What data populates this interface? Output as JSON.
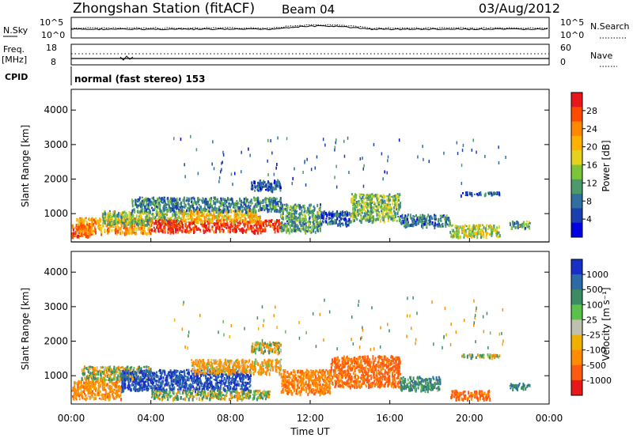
{
  "header": {
    "station": "Zhongshan Station (fitACF)",
    "beam": "Beam 04",
    "date": "03/Aug/2012"
  },
  "noise_panel": {
    "left_label": "N.Sky",
    "right_label": "N.Search",
    "y_ticks": [
      "10^5",
      "10^0"
    ]
  },
  "freq_panel": {
    "left_label_top": "Freq.",
    "left_label_bottom": "[MHz]",
    "right_label": "Nave",
    "left_ticks": [
      "18",
      "8"
    ],
    "right_ticks": [
      "60",
      "0"
    ]
  },
  "cpid": {
    "label": "CPID",
    "mode": "normal (fast stereo) 153"
  },
  "colorbars": {
    "power": {
      "label": "Power [dB]",
      "ticks": [
        "28",
        "24",
        "20",
        "16",
        "12",
        "8",
        "4"
      ],
      "colors": [
        "#e8161c",
        "#ff4a00",
        "#ff8800",
        "#ffb000",
        "#e6d21c",
        "#7cc43a",
        "#4c9a6a",
        "#3070a0",
        "#1a3fb0",
        "#0000e0"
      ]
    },
    "velocity": {
      "label": "Velocity [m s⁻¹]",
      "ticks": [
        "1000",
        "500",
        "100",
        "25",
        "-25",
        "-100",
        "-500",
        "-1000"
      ],
      "colors": [
        "#1830c8",
        "#2d6aa8",
        "#3b8c62",
        "#5ac24a",
        "#c0c0b0",
        "#f0b000",
        "#ff8c00",
        "#ff5a10",
        "#e81818"
      ]
    }
  },
  "chart_data": [
    {
      "type": "heatmap",
      "title": "",
      "xlabel": "Time UT",
      "ylabel": "Slant Range [km]",
      "x_ticks": [
        "00:00",
        "04:00",
        "08:00",
        "12:00",
        "16:00",
        "20:00",
        "00:00"
      ],
      "xlim": [
        0,
        24
      ],
      "y_ticks": [
        1000,
        2000,
        3000,
        4000
      ],
      "ylim": [
        180,
        4600
      ],
      "blobs": [
        {
          "t0": 0.0,
          "t1": 1.0,
          "r0": 350,
          "r1": 700,
          "v": 26
        },
        {
          "t0": 0.2,
          "t1": 4.0,
          "r0": 450,
          "r1": 900,
          "v": 22
        },
        {
          "t0": 1.5,
          "t1": 5.5,
          "r0": 700,
          "r1": 1100,
          "v": 14
        },
        {
          "t0": 4.0,
          "t1": 10.5,
          "r0": 500,
          "r1": 850,
          "v": 28
        },
        {
          "t0": 5.5,
          "t1": 9.5,
          "r0": 800,
          "r1": 1150,
          "v": 20
        },
        {
          "t0": 3.0,
          "t1": 10.5,
          "r0": 1100,
          "r1": 1500,
          "v": 10
        },
        {
          "t0": 9.0,
          "t1": 10.5,
          "r0": 1700,
          "r1": 2000,
          "v": 8
        },
        {
          "t0": 10.5,
          "t1": 12.5,
          "r0": 500,
          "r1": 1300,
          "v": 12
        },
        {
          "t0": 12.5,
          "t1": 14.0,
          "r0": 700,
          "r1": 1100,
          "v": 8
        },
        {
          "t0": 14.0,
          "t1": 16.5,
          "r0": 800,
          "r1": 1600,
          "v": 14
        },
        {
          "t0": 16.5,
          "t1": 19.0,
          "r0": 650,
          "r1": 1000,
          "v": 9
        },
        {
          "t0": 19.0,
          "t1": 21.5,
          "r0": 350,
          "r1": 700,
          "v": 16
        },
        {
          "t0": 19.5,
          "t1": 21.5,
          "r0": 1550,
          "r1": 1650,
          "v": 8
        },
        {
          "t0": 22.0,
          "t1": 23.0,
          "r0": 600,
          "r1": 800,
          "v": 12
        }
      ]
    },
    {
      "type": "heatmap",
      "title": "",
      "xlabel": "Time UT",
      "ylabel": "Slant Range [km]",
      "x_ticks": [
        "00:00",
        "04:00",
        "08:00",
        "12:00",
        "16:00",
        "20:00",
        "00:00"
      ],
      "xlim": [
        0,
        24
      ],
      "y_ticks": [
        1000,
        2000,
        3000,
        4000
      ],
      "ylim": [
        180,
        4600
      ],
      "blobs": [
        {
          "t0": 0.0,
          "t1": 2.5,
          "r0": 350,
          "r1": 900,
          "v": -300
        },
        {
          "t0": 0.5,
          "t1": 4.0,
          "r0": 900,
          "r1": 1300,
          "v": 60
        },
        {
          "t0": 2.5,
          "t1": 9.0,
          "r0": 600,
          "r1": 1200,
          "v": 1000
        },
        {
          "t0": 4.0,
          "t1": 10.0,
          "r0": 350,
          "r1": 600,
          "v": 80
        },
        {
          "t0": 6.0,
          "t1": 10.5,
          "r0": 1100,
          "r1": 1500,
          "v": -200
        },
        {
          "t0": 9.0,
          "t1": 10.5,
          "r0": 1700,
          "r1": 2000,
          "v": 0
        },
        {
          "t0": 10.5,
          "t1": 13.0,
          "r0": 500,
          "r1": 1200,
          "v": -400
        },
        {
          "t0": 13.0,
          "t1": 16.5,
          "r0": 700,
          "r1": 1600,
          "v": -600
        },
        {
          "t0": 16.5,
          "t1": 18.5,
          "r0": 600,
          "r1": 1000,
          "v": 300
        },
        {
          "t0": 19.0,
          "t1": 21.0,
          "r0": 350,
          "r1": 600,
          "v": -600
        },
        {
          "t0": 19.5,
          "t1": 21.5,
          "r0": 1550,
          "r1": 1650,
          "v": 0
        },
        {
          "t0": 22.0,
          "t1": 23.0,
          "r0": 650,
          "r1": 800,
          "v": 400
        }
      ]
    }
  ]
}
